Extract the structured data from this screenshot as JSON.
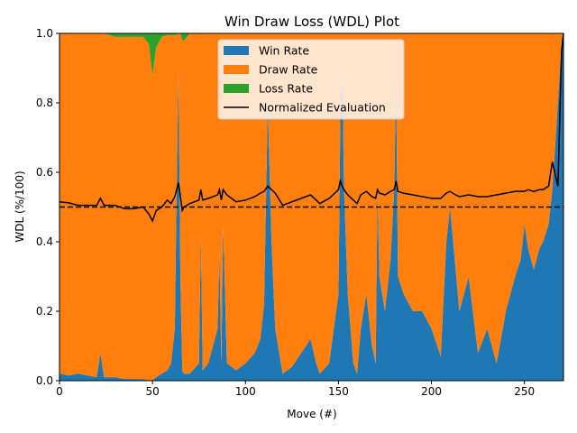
{
  "chart_data": {
    "type": "area",
    "title": "Win Draw Loss (WDL) Plot",
    "xlabel": "Move (#)",
    "ylabel": "WDL (%/100)",
    "xlim": [
      0,
      271
    ],
    "ylim": [
      0,
      1
    ],
    "x_ticks": [
      0,
      50,
      100,
      150,
      200,
      250
    ],
    "y_ticks": [
      0.0,
      0.2,
      0.4,
      0.6,
      0.8,
      1.0
    ],
    "reference_line": {
      "y": 0.5,
      "style": "dashed"
    },
    "legend": {
      "placement": "upper-center",
      "entries": [
        "Win Rate",
        "Draw Rate",
        "Loss Rate",
        "Normalized Evaluation"
      ]
    },
    "colors": {
      "win": "#1f77b4",
      "draw": "#ff7f0e",
      "loss": "#2ca02c",
      "eval": "#000000"
    },
    "x": [
      0,
      5,
      10,
      15,
      20,
      22,
      24,
      30,
      35,
      40,
      45,
      48,
      50,
      52,
      55,
      58,
      60,
      62,
      63,
      64,
      65,
      66,
      67,
      70,
      75,
      76,
      77,
      80,
      85,
      86,
      87,
      88,
      90,
      95,
      100,
      105,
      108,
      110,
      112,
      113,
      114,
      116,
      120,
      125,
      130,
      135,
      138,
      140,
      145,
      150,
      151,
      152,
      153,
      155,
      158,
      160,
      162,
      165,
      168,
      170,
      171,
      172,
      175,
      178,
      180,
      181,
      182,
      185,
      190,
      195,
      200,
      205,
      208,
      210,
      213,
      215,
      220,
      225,
      230,
      235,
      240,
      245,
      248,
      250,
      252,
      255,
      258,
      260,
      263,
      265,
      268,
      270,
      271
    ],
    "series": [
      {
        "name": "Win Rate",
        "values": [
          0.02,
          0.015,
          0.02,
          0.015,
          0.01,
          0.08,
          0.01,
          0.01,
          0.005,
          0.005,
          0.005,
          0.0,
          0.0,
          0.01,
          0.02,
          0.03,
          0.05,
          0.15,
          0.55,
          0.89,
          0.3,
          0.03,
          0.02,
          0.02,
          0.05,
          0.42,
          0.03,
          0.05,
          0.15,
          0.37,
          0.05,
          0.45,
          0.05,
          0.03,
          0.05,
          0.08,
          0.12,
          0.22,
          0.8,
          0.6,
          0.4,
          0.15,
          0.02,
          0.04,
          0.08,
          0.12,
          0.05,
          0.02,
          0.05,
          0.25,
          0.75,
          0.9,
          0.55,
          0.25,
          0.05,
          0.02,
          0.15,
          0.25,
          0.1,
          0.05,
          0.55,
          0.3,
          0.2,
          0.35,
          0.55,
          0.88,
          0.3,
          0.25,
          0.2,
          0.2,
          0.15,
          0.07,
          0.4,
          0.5,
          0.32,
          0.2,
          0.3,
          0.08,
          0.15,
          0.05,
          0.2,
          0.3,
          0.35,
          0.45,
          0.38,
          0.32,
          0.38,
          0.4,
          0.45,
          0.55,
          0.8,
          0.98,
          1.0
        ]
      },
      {
        "name": "Draw Rate",
        "values": [
          0.98,
          0.985,
          0.98,
          0.985,
          0.99,
          0.92,
          0.99,
          0.98,
          0.985,
          0.985,
          0.985,
          0.97,
          0.88,
          0.95,
          0.97,
          0.965,
          0.945,
          0.845,
          0.445,
          0.11,
          0.7,
          0.95,
          0.96,
          0.98,
          0.95,
          0.58,
          0.97,
          0.95,
          0.85,
          0.63,
          0.95,
          0.55,
          0.95,
          0.97,
          0.95,
          0.92,
          0.88,
          0.78,
          0.2,
          0.4,
          0.6,
          0.85,
          0.98,
          0.96,
          0.92,
          0.88,
          0.95,
          0.98,
          0.95,
          0.75,
          0.25,
          0.1,
          0.45,
          0.75,
          0.95,
          0.98,
          0.85,
          0.75,
          0.9,
          0.95,
          0.45,
          0.7,
          0.8,
          0.65,
          0.45,
          0.12,
          0.7,
          0.75,
          0.8,
          0.8,
          0.85,
          0.93,
          0.6,
          0.5,
          0.68,
          0.8,
          0.7,
          0.92,
          0.85,
          0.95,
          0.8,
          0.7,
          0.65,
          0.55,
          0.62,
          0.68,
          0.62,
          0.6,
          0.55,
          0.45,
          0.2,
          0.02,
          0.0
        ]
      },
      {
        "name": "Loss Rate",
        "values": [
          0.0,
          0.0,
          0.0,
          0.0,
          0.0,
          0.0,
          0.0,
          0.01,
          0.01,
          0.01,
          0.01,
          0.03,
          0.12,
          0.04,
          0.01,
          0.005,
          0.005,
          0.005,
          0.005,
          0.0,
          0.0,
          0.02,
          0.02,
          0.0,
          0.0,
          0.0,
          0.0,
          0.0,
          0.0,
          0.0,
          0.0,
          0.0,
          0.0,
          0.0,
          0.0,
          0.0,
          0.0,
          0.0,
          0.0,
          0.0,
          0.0,
          0.0,
          0.0,
          0.0,
          0.0,
          0.0,
          0.0,
          0.0,
          0.0,
          0.0,
          0.0,
          0.0,
          0.0,
          0.0,
          0.0,
          0.0,
          0.0,
          0.0,
          0.0,
          0.0,
          0.0,
          0.0,
          0.0,
          0.0,
          0.0,
          0.0,
          0.0,
          0.0,
          0.0,
          0.0,
          0.0,
          0.0,
          0.0,
          0.0,
          0.0,
          0.0,
          0.0,
          0.0,
          0.0,
          0.0,
          0.0,
          0.0,
          0.0,
          0.0,
          0.0,
          0.0,
          0.0,
          0.0,
          0.0,
          0.0,
          0.0,
          0.0,
          0.0
        ]
      },
      {
        "name": "Normalized Evaluation",
        "values": [
          0.515,
          0.512,
          0.505,
          0.505,
          0.505,
          0.525,
          0.505,
          0.505,
          0.495,
          0.495,
          0.5,
          0.48,
          0.46,
          0.49,
          0.5,
          0.52,
          0.51,
          0.53,
          0.55,
          0.57,
          0.53,
          0.49,
          0.5,
          0.51,
          0.52,
          0.55,
          0.52,
          0.525,
          0.535,
          0.55,
          0.52,
          0.55,
          0.535,
          0.515,
          0.52,
          0.53,
          0.54,
          0.545,
          0.56,
          0.555,
          0.55,
          0.54,
          0.505,
          0.515,
          0.525,
          0.535,
          0.52,
          0.51,
          0.525,
          0.55,
          0.575,
          0.56,
          0.55,
          0.535,
          0.52,
          0.51,
          0.535,
          0.545,
          0.53,
          0.525,
          0.55,
          0.54,
          0.535,
          0.545,
          0.55,
          0.575,
          0.545,
          0.54,
          0.535,
          0.53,
          0.525,
          0.525,
          0.54,
          0.545,
          0.535,
          0.53,
          0.535,
          0.53,
          0.53,
          0.535,
          0.54,
          0.545,
          0.545,
          0.545,
          0.55,
          0.545,
          0.55,
          0.55,
          0.56,
          0.63,
          0.56,
          0.95,
          1.0
        ]
      }
    ]
  }
}
